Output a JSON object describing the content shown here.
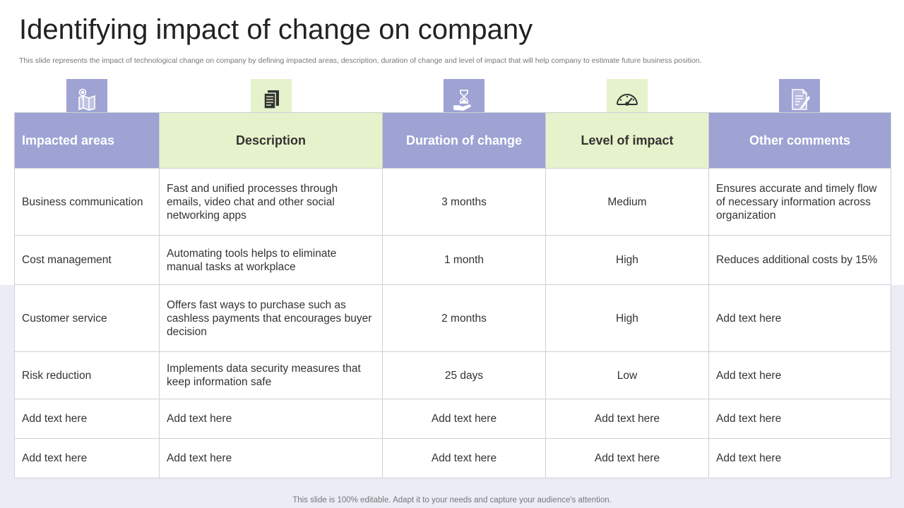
{
  "title": "Identifying impact of change on company",
  "subtitle": "This slide represents the impact of technological change on company by defining impacted areas, description, duration of change and level of impact that will help company to estimate future business position.",
  "icons": [
    "map-pin-icon",
    "documents-icon",
    "hourglass-hand-icon",
    "gauge-icon",
    "document-pen-icon"
  ],
  "colors": {
    "purple": "#9ea3d4",
    "green": "#e5f2cb",
    "band": "#ebecf6"
  },
  "table": {
    "headers": [
      "Impacted areas",
      "Description",
      "Duration of change",
      "Level of impact",
      "Other comments"
    ],
    "rows": [
      [
        "Business communication",
        "Fast and unified processes through emails, video chat and other social networking apps",
        "3 months",
        "Medium",
        "Ensures accurate and timely flow of necessary information across organization"
      ],
      [
        "Cost management",
        "Automating tools helps to eliminate manual tasks at workplace",
        "1 month",
        "High",
        "Reduces additional costs by 15%"
      ],
      [
        "Customer service",
        "Offers fast ways to purchase such as cashless payments that encourages buyer decision",
        "2 months",
        "High",
        "Add text here"
      ],
      [
        "Risk reduction",
        "Implements data security measures that keep information safe",
        "25 days",
        "Low",
        "Add text here"
      ],
      [
        "Add text here",
        "Add text here",
        "Add text here",
        "Add text here",
        "Add text here"
      ],
      [
        "Add text here",
        "Add text here",
        "Add text here",
        "Add text here",
        "Add text here"
      ]
    ]
  },
  "footer": "This slide is 100% editable. Adapt it to your needs and capture your audience's attention."
}
